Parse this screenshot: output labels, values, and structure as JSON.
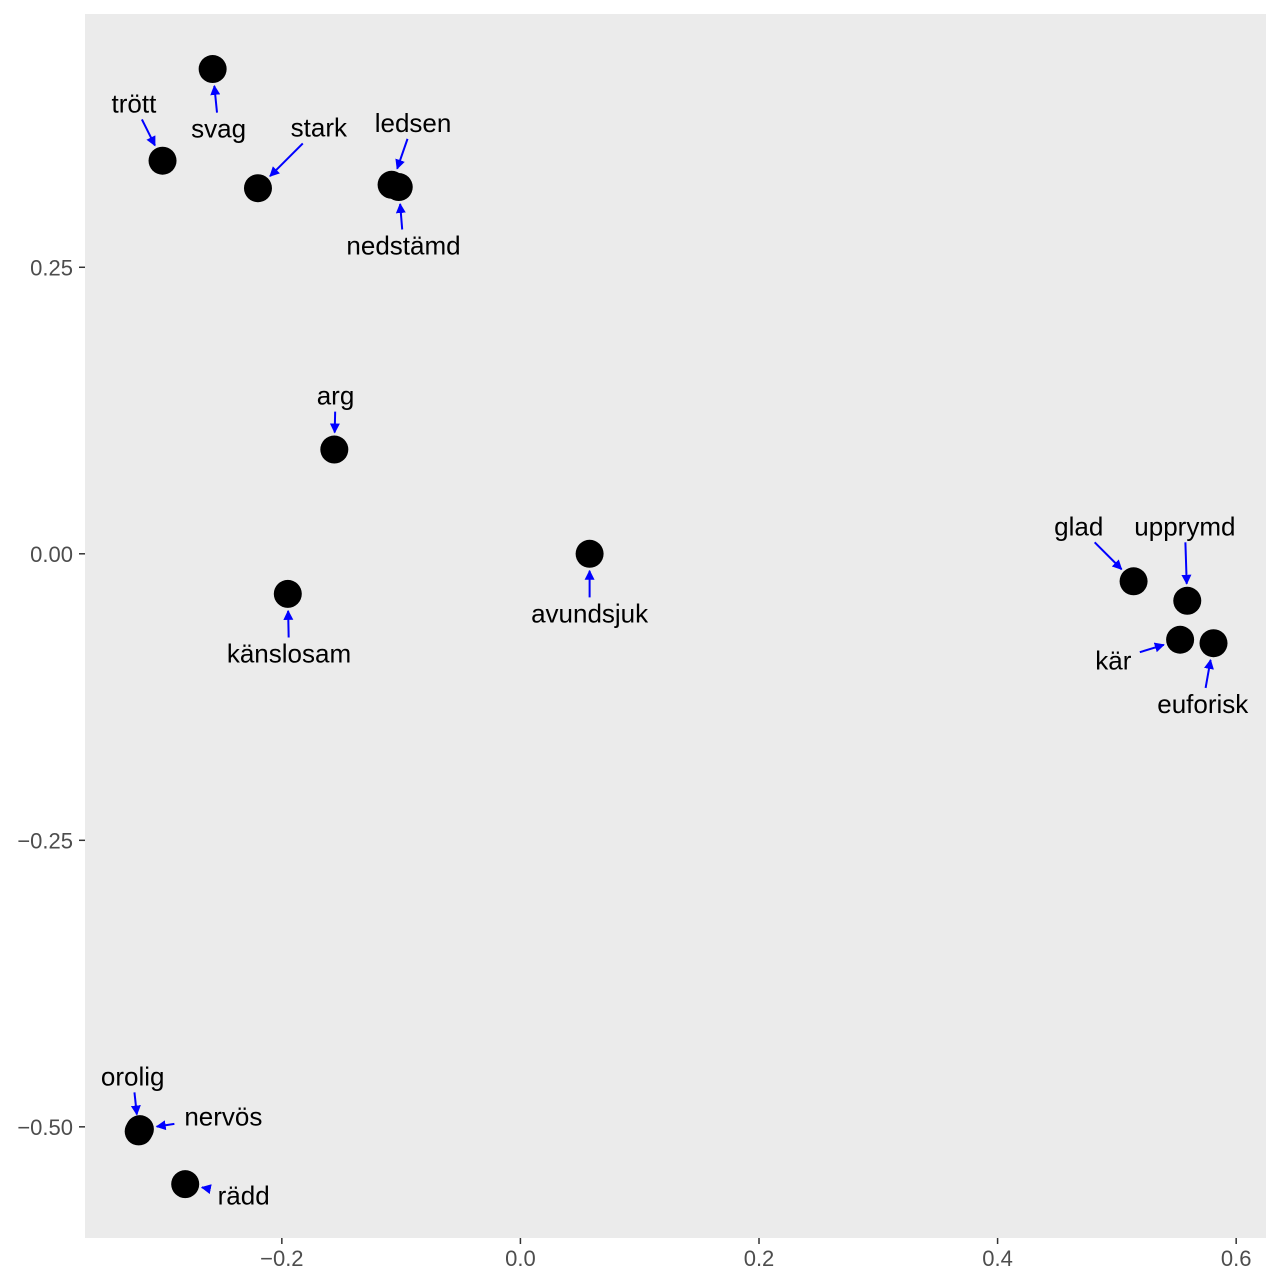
{
  "chart_data": {
    "type": "scatter",
    "title": "",
    "xlabel": "",
    "ylabel": "",
    "xlim": [
      -0.365,
      0.625
    ],
    "ylim": [
      -0.597,
      0.471
    ],
    "grid": false,
    "x_ticks": [
      {
        "value": -0.2,
        "label": "−0.2"
      },
      {
        "value": 0.0,
        "label": "0.0"
      },
      {
        "value": 0.2,
        "label": "0.2"
      },
      {
        "value": 0.4,
        "label": "0.4"
      },
      {
        "value": 0.6,
        "label": "0.6"
      }
    ],
    "y_ticks": [
      {
        "value": 0.25,
        "label": "0.25"
      },
      {
        "value": 0.0,
        "label": "0.00"
      },
      {
        "value": -0.25,
        "label": "−0.25"
      },
      {
        "value": -0.5,
        "label": "−0.50"
      }
    ],
    "points": [
      {
        "label": "trött",
        "x": -0.3,
        "y": 0.343
      },
      {
        "label": "svag",
        "x": -0.258,
        "y": 0.423
      },
      {
        "label": "stark",
        "x": -0.22,
        "y": 0.319
      },
      {
        "label": "ledsen",
        "x": -0.108,
        "y": 0.322
      },
      {
        "label": "nedstämd",
        "x": -0.102,
        "y": 0.32
      },
      {
        "label": "arg",
        "x": -0.156,
        "y": 0.091
      },
      {
        "label": "känslosam",
        "x": -0.195,
        "y": -0.035
      },
      {
        "label": "avundsjuk",
        "x": 0.058,
        "y": 0.0
      },
      {
        "label": "glad",
        "x": 0.514,
        "y": -0.024
      },
      {
        "label": "upprymd",
        "x": 0.559,
        "y": -0.041
      },
      {
        "label": "kär",
        "x": 0.553,
        "y": -0.075
      },
      {
        "label": "euforisk",
        "x": 0.581,
        "y": -0.078
      },
      {
        "label": "orolig",
        "x": -0.32,
        "y": -0.504
      },
      {
        "label": "nervös",
        "x": -0.319,
        "y": -0.502
      },
      {
        "label": "rädd",
        "x": -0.281,
        "y": -0.55
      }
    ],
    "labels": [
      {
        "text": "trött",
        "x": -0.324,
        "y": 0.393
      },
      {
        "text": "svag",
        "x": -0.253,
        "y": 0.371
      },
      {
        "text": "stark",
        "x": -0.169,
        "y": 0.372
      },
      {
        "text": "ledsen",
        "x": -0.09,
        "y": 0.376
      },
      {
        "text": "nedstämd",
        "x": -0.098,
        "y": 0.269
      },
      {
        "text": "arg",
        "x": -0.155,
        "y": 0.138
      },
      {
        "text": "känslosam",
        "x": -0.194,
        "y": -0.087
      },
      {
        "text": "avundsjuk",
        "x": 0.058,
        "y": -0.052
      },
      {
        "text": "glad",
        "x": 0.468,
        "y": 0.024
      },
      {
        "text": "upprymd",
        "x": 0.557,
        "y": 0.024
      },
      {
        "text": "kär",
        "x": 0.497,
        "y": -0.093
      },
      {
        "text": "euforisk",
        "x": 0.572,
        "y": -0.131
      },
      {
        "text": "orolig",
        "x": -0.325,
        "y": -0.456
      },
      {
        "text": "nervös",
        "x": -0.249,
        "y": -0.491
      },
      {
        "text": "rädd",
        "x": -0.232,
        "y": -0.56
      }
    ]
  }
}
